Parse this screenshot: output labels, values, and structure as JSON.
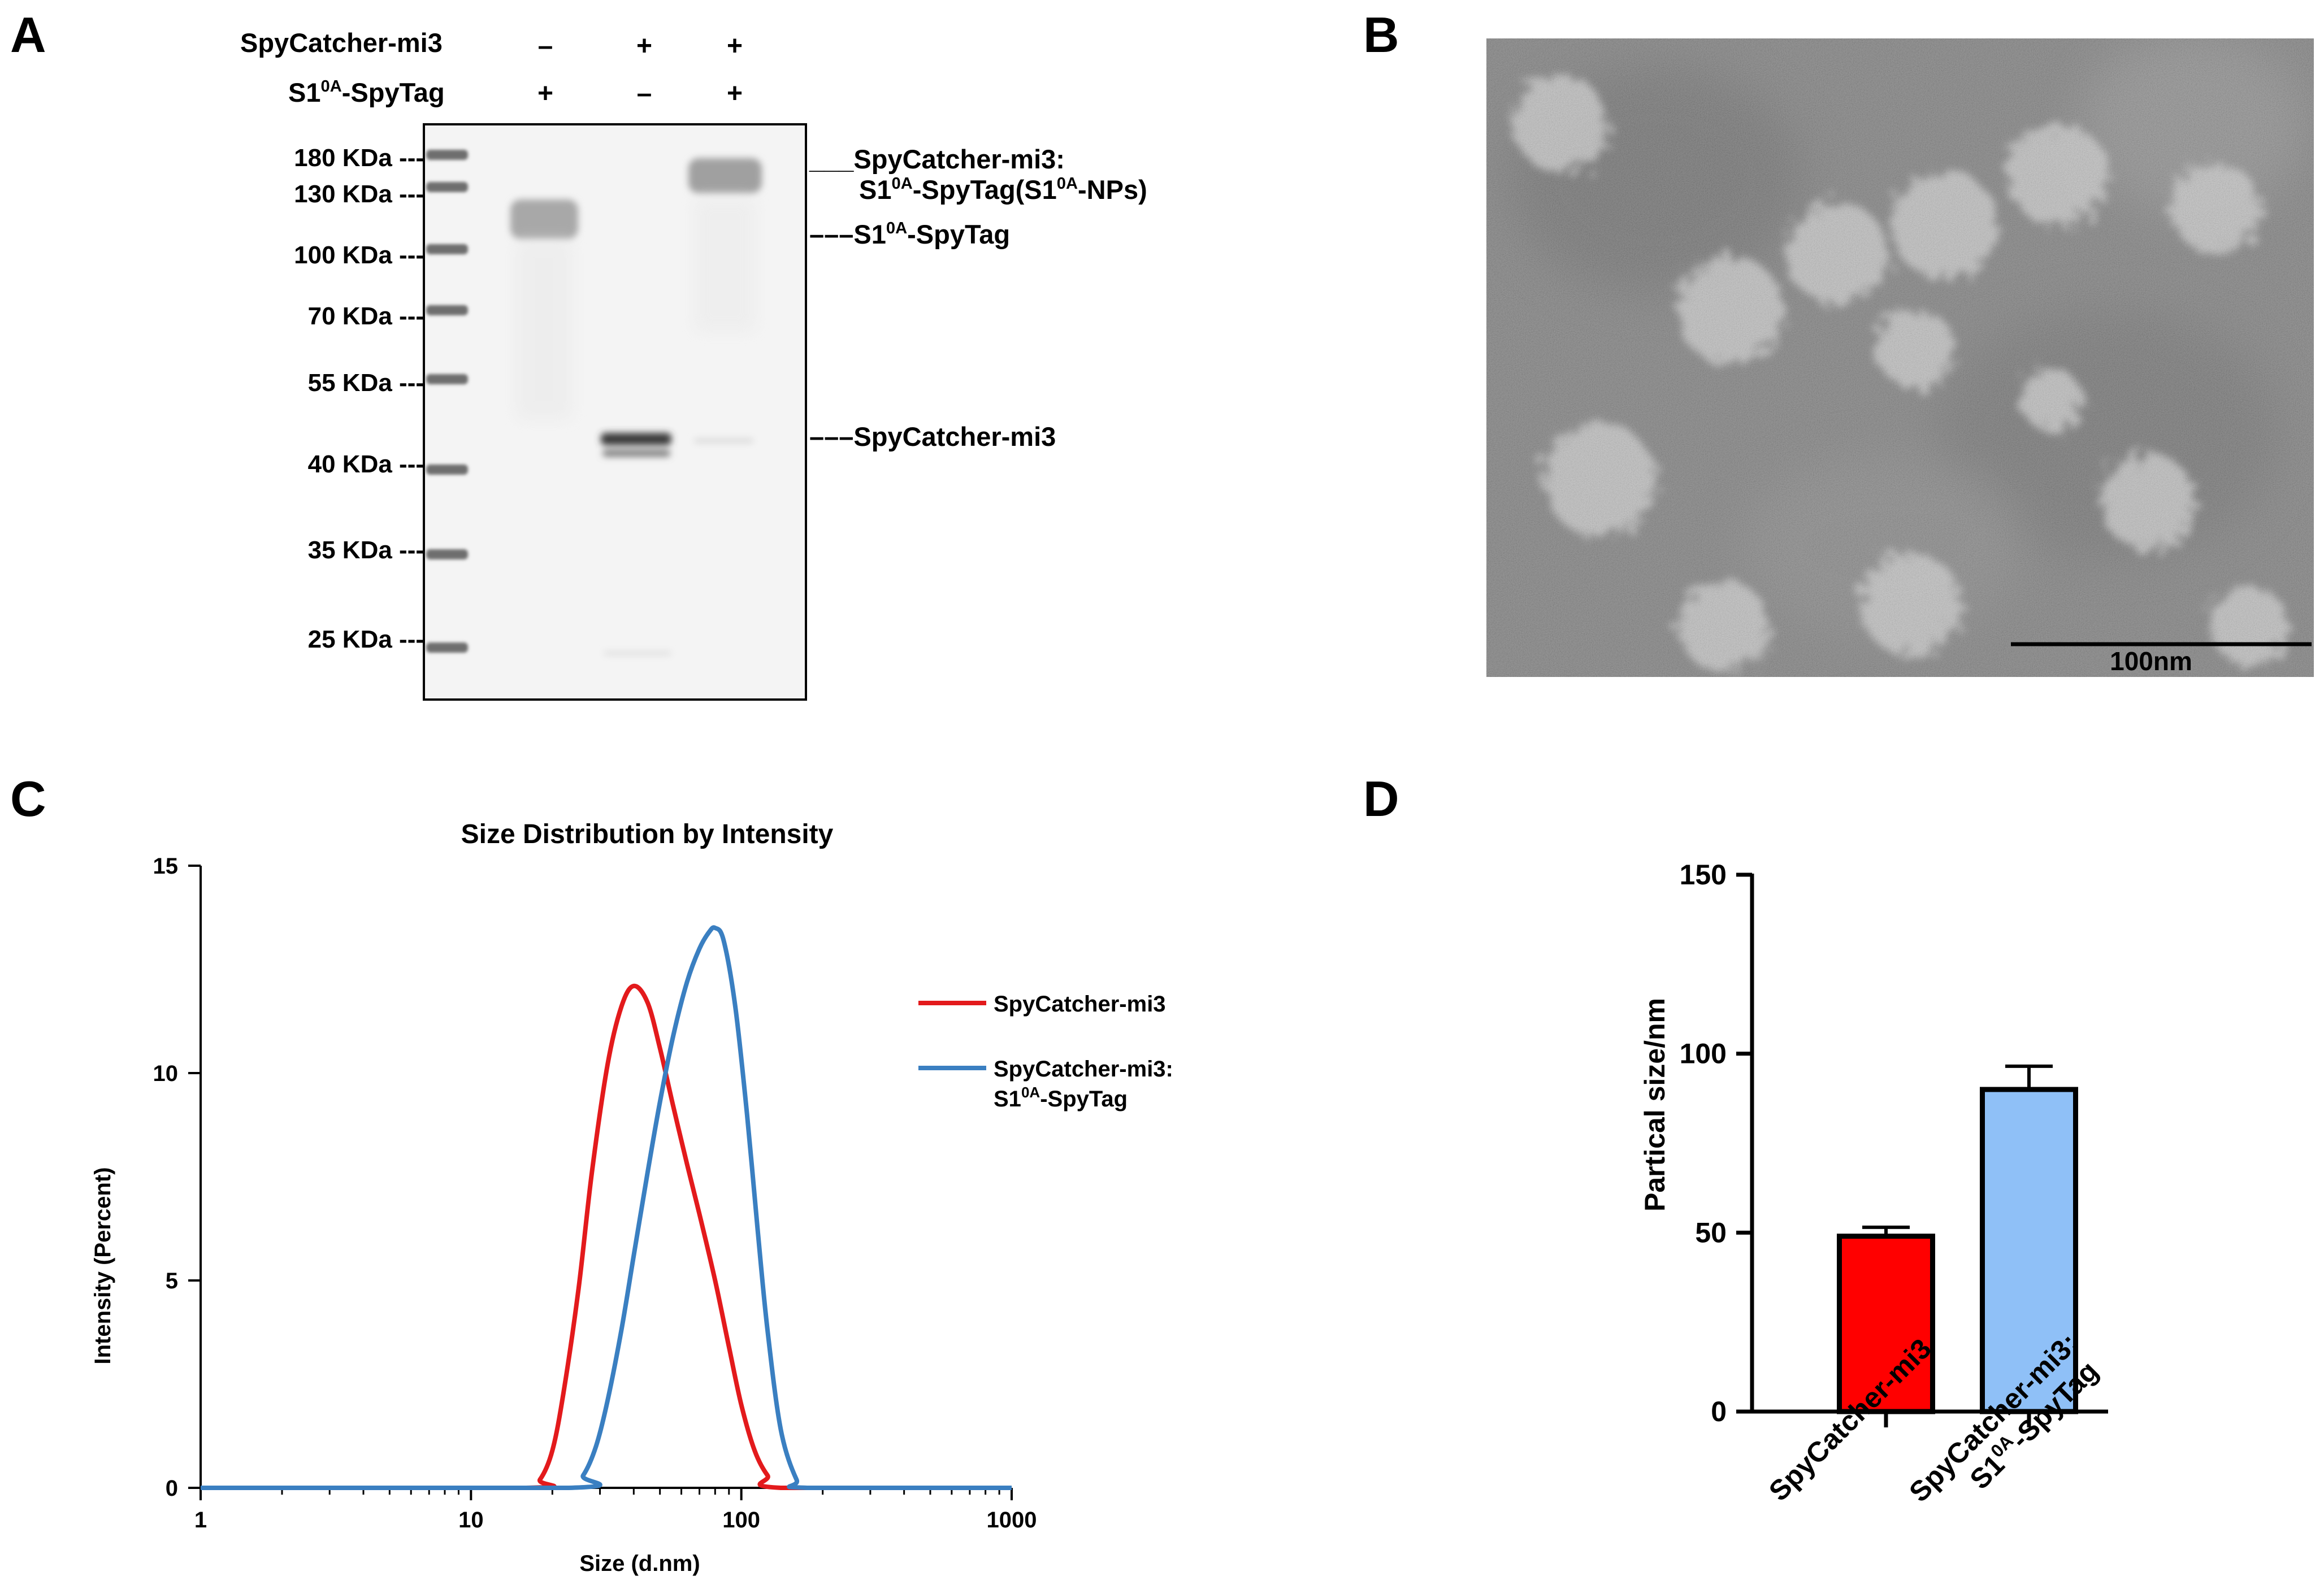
{
  "panels": {
    "a": "A",
    "b": "B",
    "c": "C",
    "d": "D"
  },
  "gel": {
    "row_labels": {
      "spycatcher": "SpyCatcher-mi3",
      "s1": "S1",
      "s1_sup": "0A",
      "s1_suffix": "-SpyTag"
    },
    "lane_signs": {
      "spycatcher": [
        "–",
        "+",
        "+"
      ],
      "s1": [
        "+",
        "–",
        "+"
      ]
    },
    "markers": [
      "180 KDa ---",
      "130 KDa ---",
      "100 KDa ---",
      "70 KDa ---",
      "55 KDa ---",
      "40 KDa ---",
      "35 KDa ---",
      "25 KDa ---"
    ],
    "band_labels": {
      "complex_line1": "___SpyCatcher-mi3:",
      "complex_line2_a": "S1",
      "complex_line2_sup1": "0A",
      "complex_line2_b": "-SpyTag(S1",
      "complex_line2_sup2": "0A",
      "complex_line2_c": "-NPs)",
      "s1_a": "–––S1",
      "s1_sup": "0A",
      "s1_b": "-SpyTag",
      "spycatcher": "–––SpyCatcher-mi3"
    }
  },
  "tem": {
    "scale_label": "100nm"
  },
  "chart_data": [
    {
      "type": "line",
      "title": "Size Distribution by Intensity",
      "xlabel": "Size (d.nm)",
      "ylabel": "Intensity (Percent)",
      "xscale": "log",
      "xlim": [
        1,
        1000
      ],
      "ylim": [
        0,
        15
      ],
      "xticks": [
        1,
        10,
        100,
        1000
      ],
      "xtick_labels": [
        "1",
        "10",
        "100",
        "1000"
      ],
      "yticks": [
        0,
        5,
        10,
        15
      ],
      "ytick_labels": [
        "0",
        "5",
        "10",
        "15"
      ],
      "legend": "right",
      "series": [
        {
          "name": "SpyCatcher-mi3",
          "color": "#e31a1c",
          "x": [
            1,
            16,
            18,
            20,
            22,
            25,
            28,
            32,
            36,
            40,
            45,
            50,
            56,
            63,
            70,
            80,
            90,
            100,
            112,
            125,
            140,
            1000
          ],
          "y": [
            0,
            0,
            0.2,
            0.9,
            2.3,
            4.8,
            7.6,
            10.2,
            11.6,
            12.1,
            11.7,
            10.6,
            9.2,
            7.8,
            6.6,
            5.0,
            3.4,
            2.0,
            0.9,
            0.3,
            0,
            0
          ]
        },
        {
          "name_line1": "SpyCatcher-mi3:",
          "name_line2_a": "S1",
          "name_line2_sup": "0A",
          "name_line2_b": "-SpyTag",
          "color": "#3a7fc1",
          "x": [
            1,
            23,
            26,
            29,
            32,
            36,
            40,
            45,
            50,
            56,
            63,
            70,
            76,
            80,
            86,
            95,
            105,
            115,
            125,
            140,
            160,
            175,
            1000
          ],
          "y": [
            0,
            0,
            0.3,
            1.0,
            2.1,
            3.8,
            5.6,
            7.6,
            9.3,
            10.9,
            12.2,
            13.0,
            13.4,
            13.5,
            13.2,
            11.6,
            9.0,
            6.2,
            3.8,
            1.4,
            0.2,
            0,
            0
          ]
        }
      ]
    },
    {
      "type": "bar",
      "xlabel": "",
      "ylabel": "Partical size/nm",
      "ylim": [
        0,
        150
      ],
      "yticks": [
        0,
        50,
        100,
        150
      ],
      "ytick_labels": [
        "0",
        "50",
        "100",
        "150"
      ],
      "categories": [
        "SpyCatcher-mi3",
        "SpyCatcher-mi3:"
      ],
      "category2_line2_a": "S1",
      "category2_line2_sup": "0A",
      "category2_line2_b": "-SpyTag",
      "values": [
        49,
        90
      ],
      "errors": [
        2.5,
        6.5
      ],
      "colors": [
        "#ff0000",
        "#8fc0f7"
      ]
    }
  ]
}
